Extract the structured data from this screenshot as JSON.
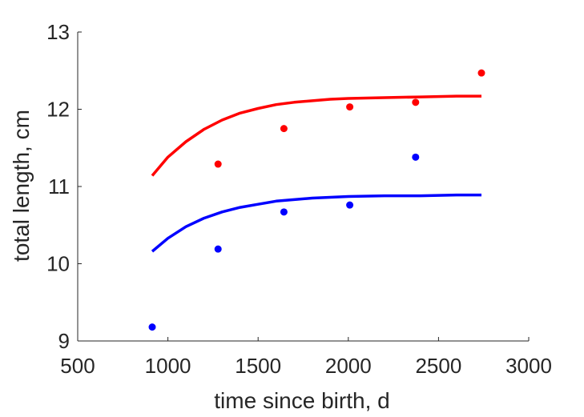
{
  "chart_data": {
    "type": "scatter",
    "title": "",
    "xlabel": "time since birth, d",
    "ylabel": "total length, cm",
    "xlim": [
      500,
      3000
    ],
    "ylim": [
      9,
      13
    ],
    "xticks": [
      500,
      1000,
      1500,
      2000,
      2500,
      3000
    ],
    "yticks": [
      9,
      10,
      11,
      12,
      13
    ],
    "grid": false,
    "legend": "none",
    "series": [
      {
        "color": "#ff0000",
        "kind": "points",
        "x": [
          1278,
          1643,
          2008,
          2373,
          2738
        ],
        "y": [
          11.29,
          11.75,
          12.03,
          12.09,
          12.47
        ]
      },
      {
        "color": "#0000ff",
        "kind": "points",
        "x": [
          913,
          1278,
          1643,
          2008,
          2373
        ],
        "y": [
          9.18,
          10.19,
          10.67,
          10.76,
          11.38
        ]
      },
      {
        "color": "#ff0000",
        "kind": "line",
        "x": [
          913,
          1000,
          1100,
          1200,
          1300,
          1400,
          1500,
          1600,
          1700,
          1800,
          1900,
          2000,
          2200,
          2400,
          2600,
          2738
        ],
        "y": [
          11.14,
          11.38,
          11.58,
          11.74,
          11.86,
          11.95,
          12.01,
          12.06,
          12.09,
          12.11,
          12.13,
          12.14,
          12.15,
          12.16,
          12.17,
          12.17
        ]
      },
      {
        "color": "#0000ff",
        "kind": "line",
        "x": [
          913,
          1000,
          1100,
          1200,
          1300,
          1400,
          1500,
          1600,
          1700,
          1800,
          1900,
          2000,
          2200,
          2400,
          2600,
          2738
        ],
        "y": [
          10.16,
          10.33,
          10.48,
          10.59,
          10.67,
          10.73,
          10.77,
          10.81,
          10.83,
          10.85,
          10.86,
          10.87,
          10.88,
          10.88,
          10.89,
          10.89
        ]
      }
    ]
  }
}
